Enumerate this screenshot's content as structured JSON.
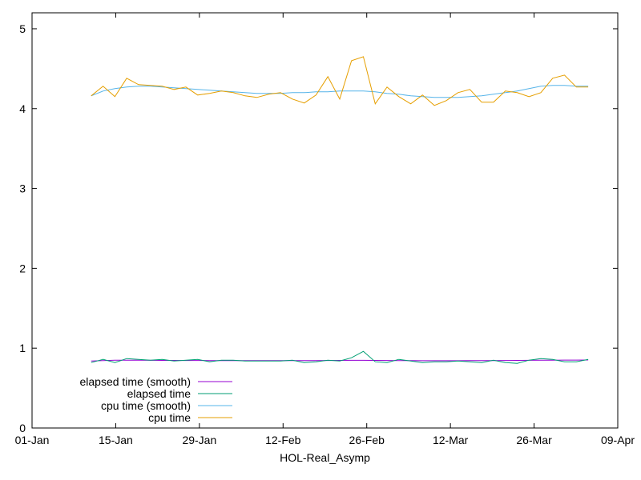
{
  "chart_data": {
    "type": "line",
    "title": "",
    "xlabel": "HOL-Real_Asymp",
    "ylabel": "",
    "xlim": [
      "2024-01-01",
      "2024-04-09"
    ],
    "ylim": [
      0,
      5.2
    ],
    "x_ticks": [
      "01-Jan",
      "15-Jan",
      "29-Jan",
      "12-Feb",
      "26-Feb",
      "12-Mar",
      "26-Mar",
      "09-Apr"
    ],
    "y_ticks": [
      "0",
      "1",
      "2",
      "3",
      "4",
      "5"
    ],
    "legend_position": "bottom-left",
    "grid": false,
    "x": [
      "2024-01-11",
      "2024-01-13",
      "2024-01-15",
      "2024-01-17",
      "2024-01-19",
      "2024-01-21",
      "2024-01-23",
      "2024-01-25",
      "2024-01-27",
      "2024-01-29",
      "2024-01-31",
      "2024-02-02",
      "2024-02-04",
      "2024-02-06",
      "2024-02-08",
      "2024-02-10",
      "2024-02-12",
      "2024-02-14",
      "2024-02-16",
      "2024-02-18",
      "2024-02-20",
      "2024-02-22",
      "2024-02-24",
      "2024-02-26",
      "2024-02-28",
      "2024-03-01",
      "2024-03-03",
      "2024-03-05",
      "2024-03-07",
      "2024-03-09",
      "2024-03-11",
      "2024-03-13",
      "2024-03-15",
      "2024-03-17",
      "2024-03-19",
      "2024-03-21",
      "2024-03-23",
      "2024-03-25",
      "2024-03-27",
      "2024-03-29",
      "2024-03-31",
      "2024-04-02",
      "2024-04-04"
    ],
    "series": [
      {
        "name": "elapsed time (smooth)",
        "color": "#9400d3",
        "values": [
          0.84,
          0.845,
          0.85,
          0.85,
          0.85,
          0.848,
          0.847,
          0.847,
          0.846,
          0.846,
          0.845,
          0.845,
          0.845,
          0.845,
          0.844,
          0.844,
          0.844,
          0.844,
          0.845,
          0.845,
          0.846,
          0.847,
          0.848,
          0.848,
          0.847,
          0.846,
          0.845,
          0.844,
          0.843,
          0.843,
          0.843,
          0.843,
          0.844,
          0.844,
          0.845,
          0.846,
          0.847,
          0.848,
          0.849,
          0.85,
          0.851,
          0.851,
          0.852
        ]
      },
      {
        "name": "elapsed time",
        "color": "#009e73",
        "values": [
          0.82,
          0.86,
          0.82,
          0.87,
          0.86,
          0.85,
          0.86,
          0.84,
          0.85,
          0.86,
          0.83,
          0.85,
          0.85,
          0.84,
          0.84,
          0.84,
          0.84,
          0.85,
          0.82,
          0.83,
          0.85,
          0.84,
          0.88,
          0.96,
          0.83,
          0.82,
          0.86,
          0.84,
          0.82,
          0.83,
          0.83,
          0.84,
          0.83,
          0.82,
          0.85,
          0.82,
          0.81,
          0.85,
          0.87,
          0.86,
          0.83,
          0.83,
          0.86
        ]
      },
      {
        "name": "cpu time (smooth)",
        "color": "#56b4e9",
        "values": [
          4.16,
          4.22,
          4.25,
          4.27,
          4.28,
          4.28,
          4.27,
          4.26,
          4.25,
          4.24,
          4.23,
          4.22,
          4.21,
          4.2,
          4.19,
          4.19,
          4.19,
          4.2,
          4.2,
          4.21,
          4.21,
          4.22,
          4.22,
          4.22,
          4.21,
          4.19,
          4.18,
          4.16,
          4.15,
          4.14,
          4.14,
          4.14,
          4.15,
          4.16,
          4.18,
          4.2,
          4.22,
          4.25,
          4.28,
          4.29,
          4.29,
          4.28,
          4.28
        ]
      },
      {
        "name": "cpu time",
        "color": "#e69f00",
        "values": [
          4.16,
          4.28,
          4.15,
          4.38,
          4.3,
          4.29,
          4.28,
          4.24,
          4.27,
          4.17,
          4.19,
          4.22,
          4.2,
          4.16,
          4.14,
          4.18,
          4.2,
          4.12,
          4.07,
          4.17,
          4.4,
          4.12,
          4.6,
          4.65,
          4.06,
          4.27,
          4.15,
          4.06,
          4.17,
          4.04,
          4.1,
          4.2,
          4.24,
          4.08,
          4.08,
          4.22,
          4.2,
          4.15,
          4.2,
          4.38,
          4.42,
          4.27,
          4.27
        ]
      }
    ]
  }
}
